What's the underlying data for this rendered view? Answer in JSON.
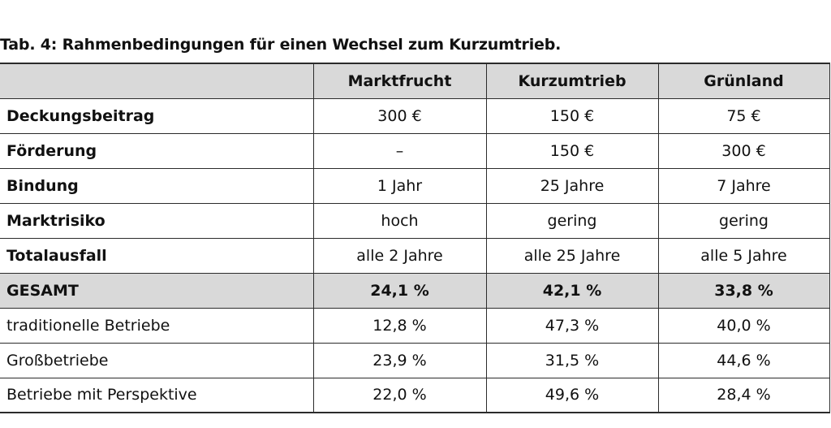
{
  "caption": "Tab. 4: Rahmenbedingungen für einen Wechsel zum Kurzumtrieb.",
  "table": {
    "columns": [
      "",
      "Marktfrucht",
      "Kurzumtrieb",
      "Grünland"
    ],
    "rows": [
      {
        "label": "Deckungsbeitrag",
        "values": [
          "300 €",
          "150 €",
          "75 €"
        ]
      },
      {
        "label": "Förderung",
        "values": [
          "–",
          "150 €",
          "300 €"
        ]
      },
      {
        "label": "Bindung",
        "values": [
          "1 Jahr",
          "25 Jahre",
          "7 Jahre"
        ]
      },
      {
        "label": "Marktrisiko",
        "values": [
          "hoch",
          "gering",
          "gering"
        ]
      },
      {
        "label": "Totalausfall",
        "values": [
          "alle 2 Jahre",
          "alle 25 Jahre",
          "alle 5 Jahre"
        ]
      },
      {
        "label": "GESAMT",
        "values": [
          "24,1 %",
          "42,1 %",
          "33,8 %"
        ]
      },
      {
        "label": "traditionelle Betriebe",
        "values": [
          "12,8 %",
          "47,3 %",
          "40,0 %"
        ]
      },
      {
        "label": "Großbetriebe",
        "values": [
          "23,9 %",
          "31,5 %",
          "44,6 %"
        ]
      },
      {
        "label": "Betriebe mit Perspektive",
        "values": [
          "22,0 %",
          "49,6 %",
          "28,4 %"
        ]
      }
    ]
  }
}
